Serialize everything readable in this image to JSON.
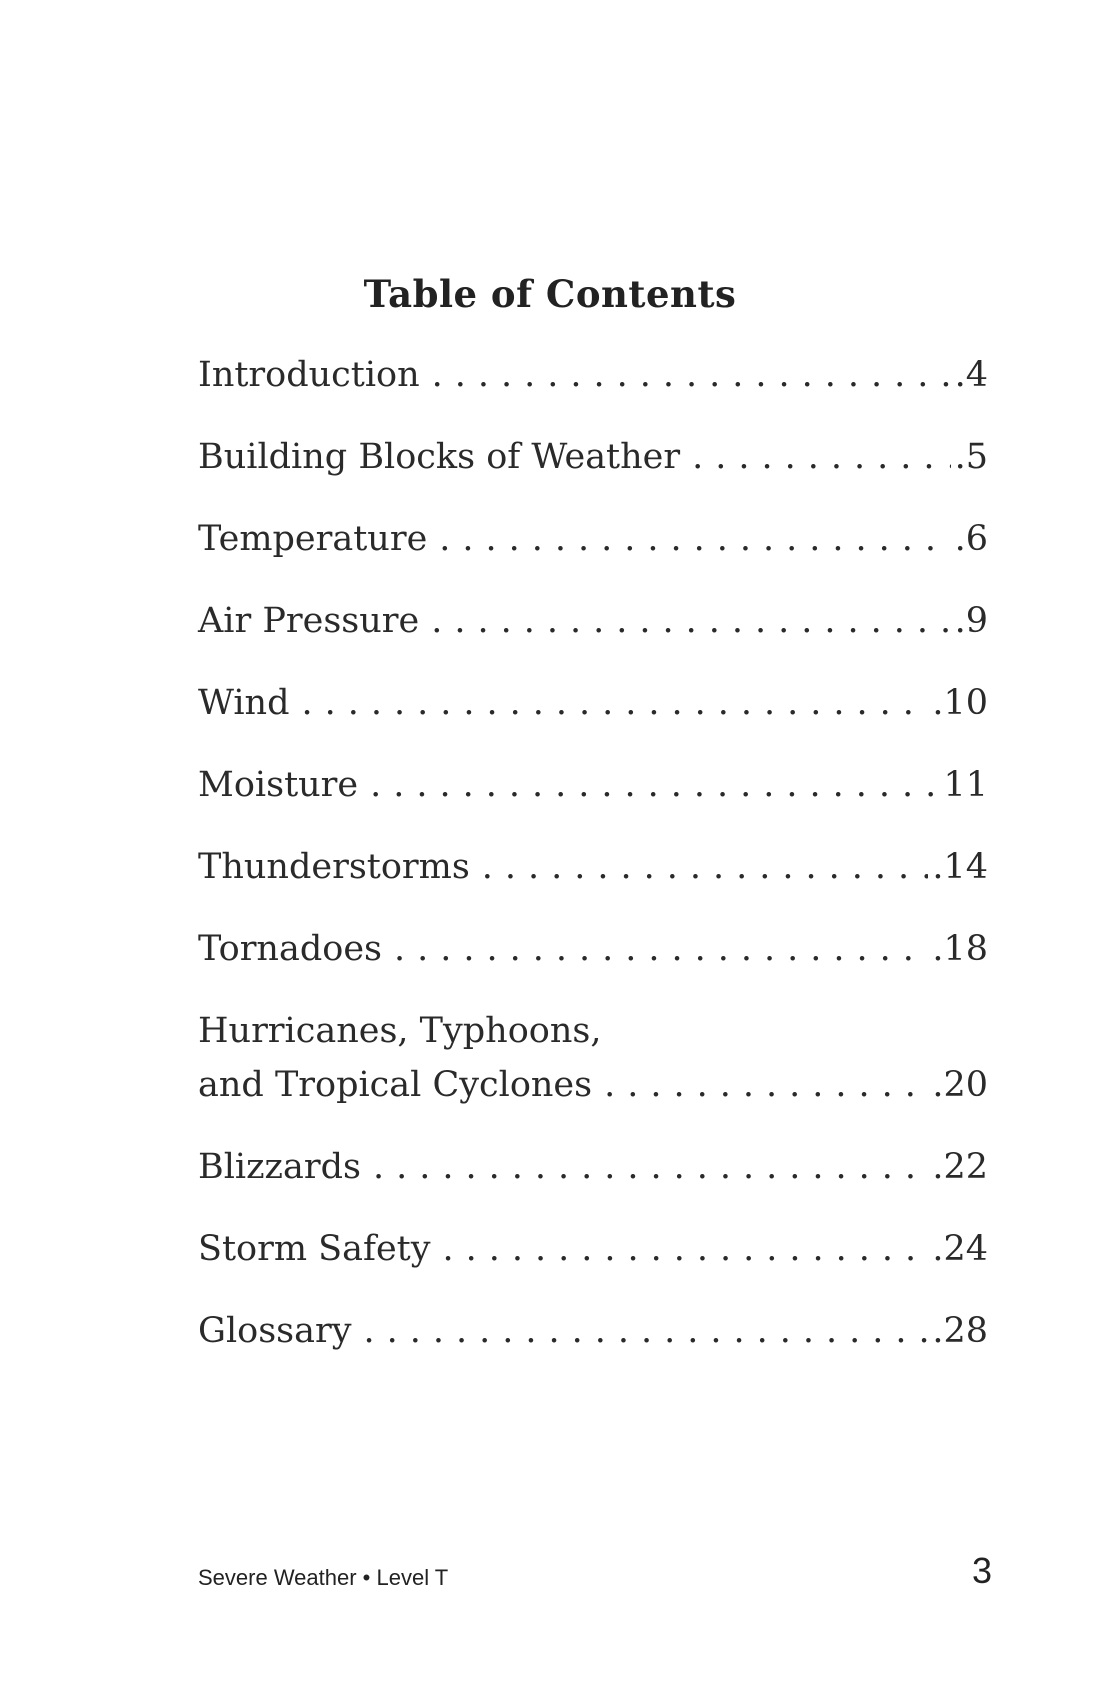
{
  "title": "Table of Contents",
  "entries": [
    {
      "label": "Introduction",
      "page": ".4"
    },
    {
      "label": "Building Blocks of Weather",
      "page": ".5"
    },
    {
      "label": "Temperature",
      "page": ".6"
    },
    {
      "label": "Air Pressure",
      "page": ".9"
    },
    {
      "label": "Wind",
      "page": ".10"
    },
    {
      "label": "Moisture",
      "page": "11"
    },
    {
      "label": "Thunderstorms",
      "page": ".14"
    },
    {
      "label": "Tornadoes",
      "page": ".18"
    },
    {
      "label_line1": "Hurricanes, Typhoons,",
      "label_line2": "and Tropical Cyclones",
      "page": ".20"
    },
    {
      "label": "Blizzards",
      "page": ".22"
    },
    {
      "label": "Storm Safety",
      "page": ".24"
    },
    {
      "label": "Glossary",
      "page": ".28"
    }
  ],
  "leader_dots": "..........................................................................",
  "footer": {
    "book": "Severe Weather • Level T",
    "page_number": "3"
  }
}
